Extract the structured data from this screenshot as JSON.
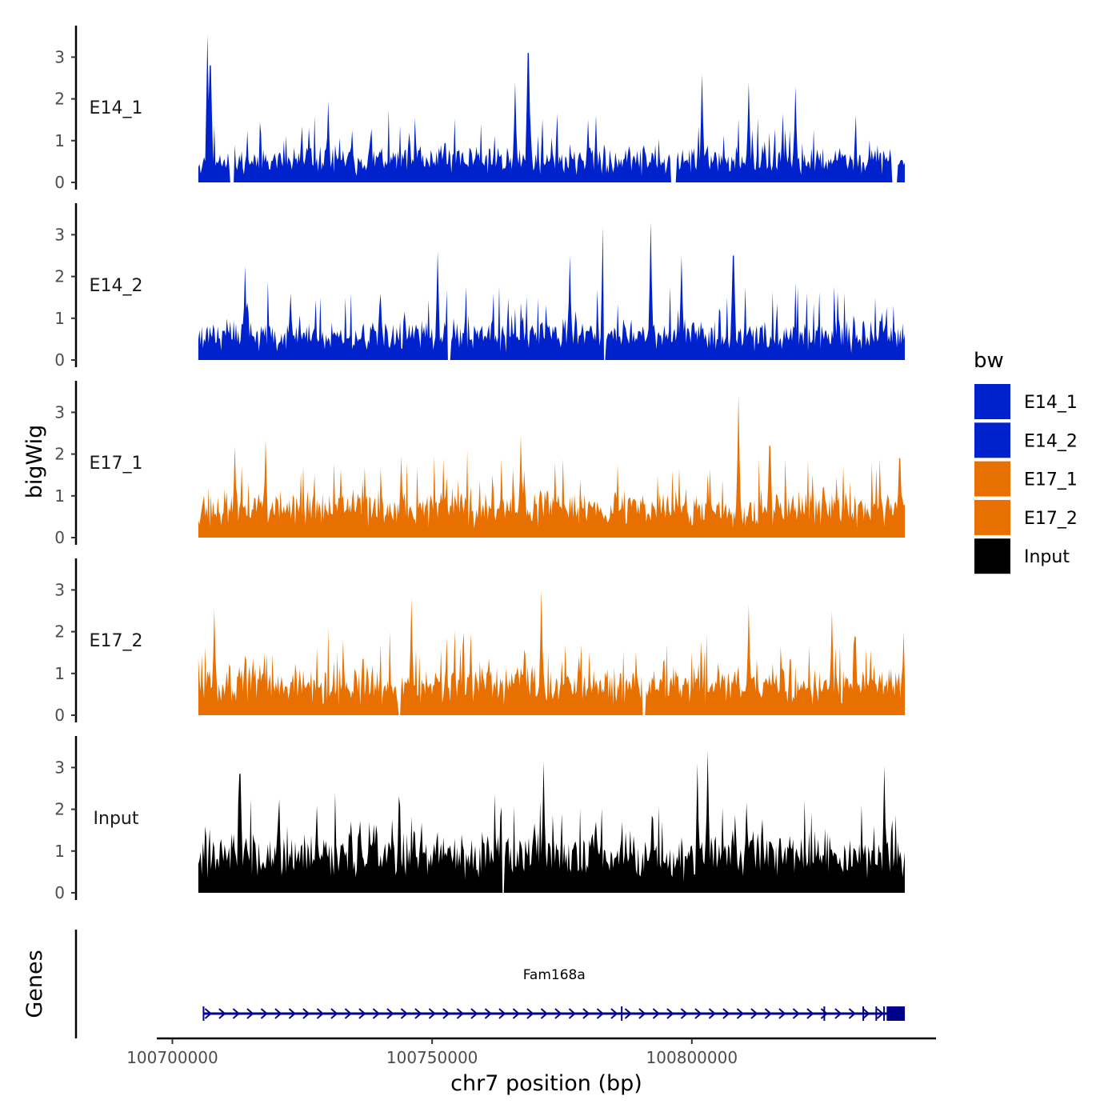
{
  "chart_data": {
    "type": "area",
    "y_axis_title": "bigWig",
    "genes_axis_title": "Genes",
    "x_axis_title": "chr7 position (bp)",
    "x_range": [
      100697000,
      100847000
    ],
    "signal_range": [
      100705000,
      100841000
    ],
    "x_ticks": [
      {
        "value": 100700000,
        "label": "100700000"
      },
      {
        "value": 100750000,
        "label": "100750000"
      },
      {
        "value": 100800000,
        "label": "100800000"
      }
    ],
    "y_range": [
      0,
      3.8
    ],
    "y_ticks": [
      {
        "value": 0,
        "label": "0"
      },
      {
        "value": 1,
        "label": "1"
      },
      {
        "value": 2,
        "label": "2"
      },
      {
        "value": 3,
        "label": "3"
      }
    ],
    "legend": {
      "title": "bw",
      "items": [
        {
          "label": "E14_1",
          "color": "#0022CC"
        },
        {
          "label": "E14_2",
          "color": "#0022CC"
        },
        {
          "label": "E17_1",
          "color": "#E87000"
        },
        {
          "label": "E17_2",
          "color": "#E87000"
        },
        {
          "label": "Input",
          "color": "#000000"
        }
      ]
    },
    "tracks": [
      {
        "name": "E14_1",
        "color": "#0022CC",
        "seed": 11,
        "base": 0.55,
        "noise": 0.9,
        "gaps": [
          [
            100711000,
            100712000
          ],
          [
            100796000,
            100797000
          ],
          [
            100838500,
            100839500
          ]
        ],
        "peaks": [
          [
            100706800,
            3.55
          ],
          [
            100707300,
            2.8
          ],
          [
            100730000,
            1.95
          ],
          [
            100766000,
            2.4
          ],
          [
            100768500,
            3.1
          ],
          [
            100780000,
            1.5
          ],
          [
            100802000,
            2.6
          ],
          [
            100811000,
            2.4
          ],
          [
            100820000,
            2.3
          ]
        ]
      },
      {
        "name": "E14_2",
        "color": "#0022CC",
        "seed": 23,
        "base": 0.6,
        "noise": 1.0,
        "gaps": [
          [
            100753000,
            100753600
          ],
          [
            100783000,
            100783500
          ]
        ],
        "peaks": [
          [
            100714000,
            2.25
          ],
          [
            100751000,
            2.6
          ],
          [
            100776500,
            2.5
          ],
          [
            100783000,
            3.2
          ],
          [
            100792000,
            3.3
          ],
          [
            100798000,
            2.5
          ],
          [
            100808000,
            2.5
          ]
        ]
      },
      {
        "name": "E17_1",
        "color": "#E87000",
        "seed": 37,
        "base": 0.75,
        "noise": 1.0,
        "gaps": [],
        "peaks": [
          [
            100712000,
            2.2
          ],
          [
            100718000,
            2.35
          ],
          [
            100744000,
            1.95
          ],
          [
            100767000,
            2.45
          ],
          [
            100809000,
            3.4
          ],
          [
            100815000,
            2.2
          ],
          [
            100840000,
            1.9
          ]
        ]
      },
      {
        "name": "E17_2",
        "color": "#E87000",
        "seed": 51,
        "base": 0.75,
        "noise": 1.05,
        "gaps": [
          [
            100743500,
            100744000
          ],
          [
            100790500,
            100791000
          ]
        ],
        "peaks": [
          [
            100708000,
            2.55
          ],
          [
            100746000,
            2.8
          ],
          [
            100771000,
            3.0
          ],
          [
            100811000,
            2.65
          ],
          [
            100827000,
            2.5
          ]
        ]
      },
      {
        "name": "Input",
        "color": "#000000",
        "seed": 77,
        "base": 1.0,
        "noise": 1.05,
        "gaps": [
          [
            100763500,
            100763800
          ]
        ],
        "peaks": [
          [
            100713000,
            2.85
          ],
          [
            100771500,
            3.15
          ],
          [
            100803000,
            3.4
          ],
          [
            100801000,
            3.1
          ],
          [
            100837000,
            3.05
          ]
        ]
      }
    ],
    "gene": {
      "name": "Fam168a",
      "strand": "+",
      "color": "#00008B",
      "start": 100706000,
      "end": 100841000,
      "thick_start": 100837500,
      "thick_end": 100841000
    }
  }
}
